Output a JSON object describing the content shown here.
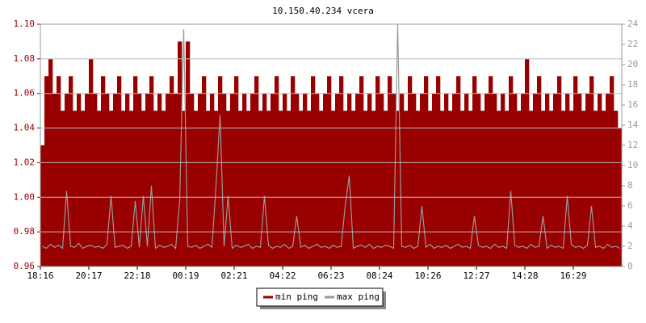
{
  "chart_data": {
    "type": "bar",
    "title": "10.150.40.234 vcera",
    "categories": [
      "18:16",
      null,
      null,
      null,
      null,
      null,
      null,
      null,
      null,
      null,
      null,
      null,
      "20:17",
      null,
      null,
      null,
      null,
      null,
      null,
      null,
      null,
      null,
      null,
      null,
      "22:18",
      null,
      null,
      null,
      null,
      null,
      null,
      null,
      null,
      null,
      null,
      null,
      "00:19",
      null,
      null,
      null,
      null,
      null,
      null,
      null,
      null,
      null,
      null,
      null,
      "02:21",
      null,
      null,
      null,
      null,
      null,
      null,
      null,
      null,
      null,
      null,
      null,
      "04:22",
      null,
      null,
      null,
      null,
      null,
      null,
      null,
      null,
      null,
      null,
      null,
      "06:23",
      null,
      null,
      null,
      null,
      null,
      null,
      null,
      null,
      null,
      null,
      null,
      "08:24",
      null,
      null,
      null,
      null,
      null,
      null,
      null,
      null,
      null,
      null,
      null,
      "10:26",
      null,
      null,
      null,
      null,
      null,
      null,
      null,
      null,
      null,
      null,
      null,
      "12:27",
      null,
      null,
      null,
      null,
      null,
      null,
      null,
      null,
      null,
      null,
      null,
      "14:28",
      null,
      null,
      null,
      null,
      null,
      null,
      null,
      null,
      null,
      null,
      null,
      "16:29",
      null,
      null,
      null,
      null,
      null,
      null,
      null,
      null,
      null,
      null,
      null
    ],
    "series": [
      {
        "name": "min ping",
        "color": "#990000",
        "axis": "y",
        "values": [
          1.03,
          1.07,
          1.08,
          1.06,
          1.07,
          1.05,
          1.06,
          1.07,
          1.05,
          1.06,
          1.05,
          1.06,
          1.08,
          1.06,
          1.05,
          1.07,
          1.06,
          1.05,
          1.06,
          1.07,
          1.05,
          1.06,
          1.05,
          1.07,
          1.06,
          1.05,
          1.06,
          1.07,
          1.05,
          1.06,
          1.05,
          1.06,
          1.07,
          1.06,
          1.09,
          1.05,
          1.09,
          1.06,
          1.05,
          1.06,
          1.07,
          1.05,
          1.06,
          1.05,
          1.07,
          1.06,
          1.05,
          1.06,
          1.07,
          1.05,
          1.06,
          1.05,
          1.06,
          1.07,
          1.05,
          1.06,
          1.05,
          1.06,
          1.07,
          1.05,
          1.06,
          1.05,
          1.07,
          1.06,
          1.05,
          1.06,
          1.05,
          1.07,
          1.06,
          1.05,
          1.06,
          1.07,
          1.05,
          1.06,
          1.07,
          1.05,
          1.06,
          1.05,
          1.06,
          1.07,
          1.05,
          1.06,
          1.05,
          1.07,
          1.06,
          1.05,
          1.07,
          1.06,
          1.05,
          1.06,
          1.05,
          1.07,
          1.06,
          1.05,
          1.06,
          1.07,
          1.05,
          1.06,
          1.07,
          1.05,
          1.06,
          1.05,
          1.06,
          1.07,
          1.05,
          1.06,
          1.05,
          1.07,
          1.06,
          1.05,
          1.06,
          1.07,
          1.06,
          1.05,
          1.06,
          1.05,
          1.07,
          1.06,
          1.05,
          1.06,
          1.08,
          1.05,
          1.06,
          1.07,
          1.05,
          1.06,
          1.05,
          1.06,
          1.07,
          1.05,
          1.06,
          1.05,
          1.07,
          1.06,
          1.05,
          1.06,
          1.07,
          1.05,
          1.06,
          1.05,
          1.06,
          1.07,
          1.05,
          1.04
        ]
      },
      {
        "name": "max ping",
        "color": "#999999",
        "axis": "y2",
        "values": [
          2.0,
          1.8,
          2.2,
          1.9,
          2.1,
          1.8,
          7.5,
          2.0,
          1.9,
          2.3,
          1.8,
          2.0,
          2.1,
          1.9,
          2.0,
          1.8,
          2.2,
          7.0,
          1.9,
          2.0,
          2.1,
          1.8,
          2.0,
          6.5,
          1.9,
          7.0,
          2.0,
          8.0,
          1.8,
          2.1,
          1.9,
          2.0,
          2.2,
          1.8,
          6.5,
          23.5,
          2.0,
          1.9,
          2.1,
          1.8,
          2.0,
          2.2,
          1.9,
          8.0,
          15.0,
          2.0,
          7.0,
          1.8,
          2.1,
          1.9,
          2.0,
          2.2,
          1.8,
          2.0,
          1.9,
          7.0,
          2.1,
          1.8,
          2.0,
          1.9,
          2.2,
          1.8,
          2.0,
          5.0,
          1.9,
          2.1,
          1.8,
          2.0,
          2.2,
          1.9,
          2.0,
          1.8,
          2.1,
          1.9,
          2.0,
          6.0,
          9.0,
          1.8,
          2.0,
          2.1,
          1.9,
          2.2,
          1.8,
          2.0,
          1.9,
          2.1,
          2.0,
          1.8,
          24.0,
          2.0,
          1.9,
          2.1,
          1.8,
          2.0,
          6.0,
          1.9,
          2.2,
          1.8,
          2.0,
          1.9,
          2.1,
          1.8,
          2.0,
          2.2,
          1.9,
          2.0,
          1.8,
          5.0,
          2.1,
          1.9,
          2.0,
          1.8,
          2.2,
          1.9,
          2.0,
          1.8,
          7.5,
          2.1,
          1.9,
          2.0,
          1.8,
          2.2,
          1.9,
          2.0,
          5.0,
          1.8,
          2.1,
          1.9,
          2.0,
          1.8,
          7.0,
          2.2,
          1.9,
          2.0,
          1.8,
          2.1,
          6.0,
          1.9,
          2.0,
          1.8,
          2.2,
          1.9,
          2.0,
          1.8
        ]
      }
    ],
    "ylim": [
      0.96,
      1.1
    ],
    "yticks": [
      {
        "value": 0.96,
        "label": "0.96"
      },
      {
        "value": 0.98,
        "label": "0.98"
      },
      {
        "value": 1.0,
        "label": "1.00"
      },
      {
        "value": 1.02,
        "label": "1.02"
      },
      {
        "value": 1.04,
        "label": "1.04"
      },
      {
        "value": 1.06,
        "label": "1.06"
      },
      {
        "value": 1.08,
        "label": "1.08"
      },
      {
        "value": 1.1,
        "label": "1.10"
      }
    ],
    "y2lim": [
      0,
      24
    ],
    "y2ticks": [
      0,
      2,
      4,
      6,
      8,
      10,
      12,
      14,
      16,
      18,
      20,
      22,
      24
    ],
    "grid": true,
    "legend": "bottom"
  }
}
